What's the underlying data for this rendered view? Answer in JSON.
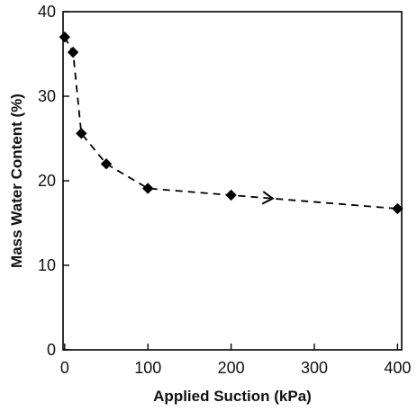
{
  "chart_data": {
    "type": "line",
    "xlabel": "Applied Suction (kPa)",
    "ylabel": "Mass Water Content (%)",
    "xlim": [
      -2,
      405
    ],
    "ylim": [
      0,
      40
    ],
    "x_ticks": [
      0,
      100,
      200,
      300,
      400
    ],
    "y_ticks": [
      0,
      10,
      20,
      30,
      40
    ],
    "grid": false,
    "legend": "none",
    "series": [
      {
        "x": [
          0,
          10,
          20,
          50,
          100,
          200,
          400
        ],
        "y": [
          37.0,
          35.2,
          25.6,
          22.0,
          19.1,
          18.3,
          16.7
        ],
        "marker": "diamond",
        "line_style": "dashed",
        "color": "#000000",
        "direction_arrow_at_x": 250
      }
    ]
  }
}
